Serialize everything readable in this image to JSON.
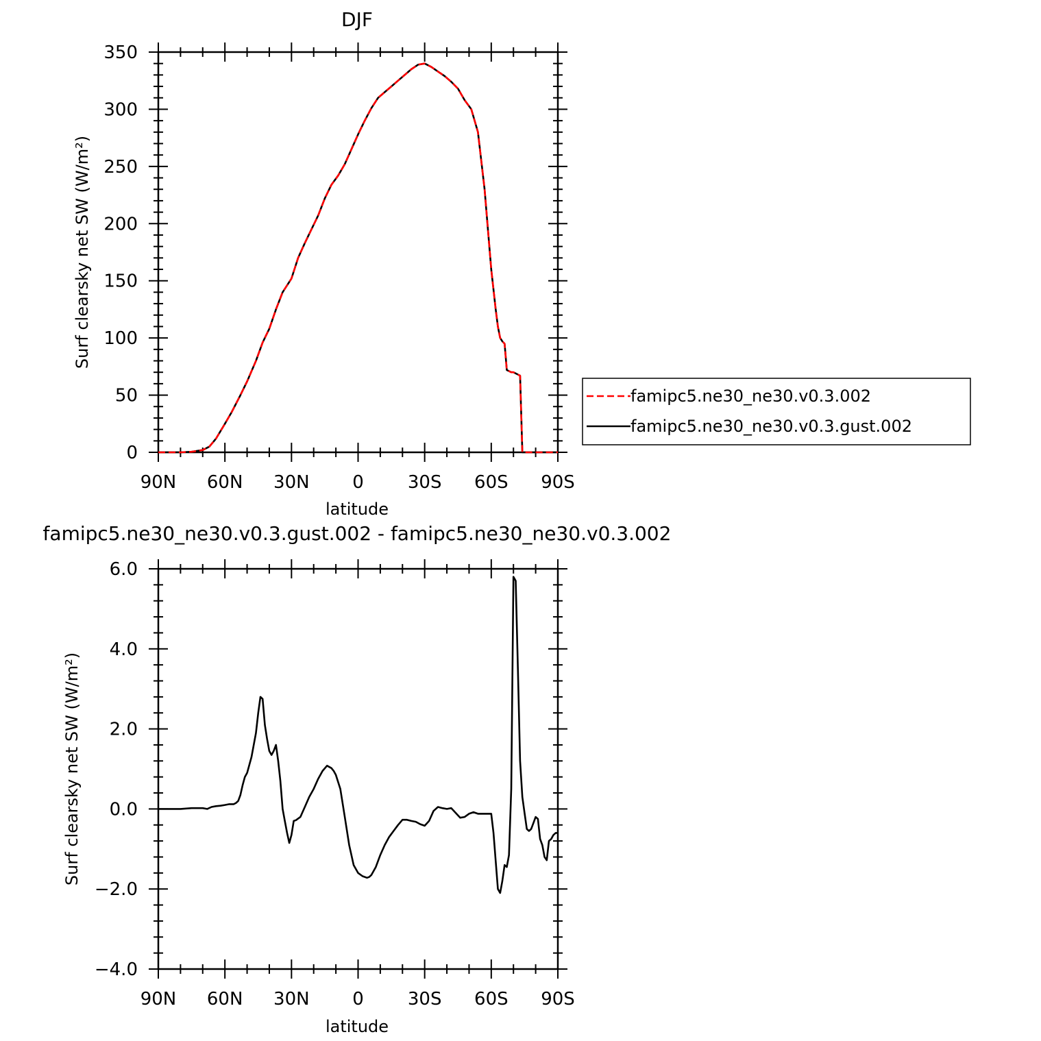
{
  "colors": {
    "control": "#ff0000",
    "test": "#000000",
    "axis": "#000000",
    "background": "#ffffff"
  },
  "chart_data": [
    {
      "type": "line",
      "title": "DJF",
      "xlabel": "latitude",
      "ylabel": "Surf clearsky net SW (W/m²)",
      "x_ticks": [
        {
          "value": -90,
          "label": "90N"
        },
        {
          "value": -60,
          "label": "60N"
        },
        {
          "value": -30,
          "label": "30N"
        },
        {
          "value": 0,
          "label": "0"
        },
        {
          "value": 30,
          "label": "30S"
        },
        {
          "value": 60,
          "label": "60S"
        },
        {
          "value": 90,
          "label": "90S"
        }
      ],
      "xlim": [
        -90,
        90
      ],
      "ylim": [
        0,
        350
      ],
      "y_ticks": [
        {
          "value": 0,
          "label": "0"
        },
        {
          "value": 50,
          "label": "50"
        },
        {
          "value": 100,
          "label": "100"
        },
        {
          "value": 150,
          "label": "150"
        },
        {
          "value": 200,
          "label": "200"
        },
        {
          "value": 250,
          "label": "250"
        },
        {
          "value": 300,
          "label": "300"
        },
        {
          "value": 350,
          "label": "350"
        }
      ],
      "legend": {
        "placement": "right"
      },
      "series": [
        {
          "name": "famipc5.ne30_ne30.v0.3.002",
          "style": "dashed",
          "x": [
            -90,
            -80,
            -75,
            -70,
            -67,
            -64,
            -60,
            -57,
            -53,
            -50,
            -46,
            -43,
            -40,
            -37,
            -34,
            -30,
            -27,
            -24,
            -21,
            -18,
            -15,
            -12,
            -9,
            -6,
            -3,
            0,
            3,
            6,
            9,
            12,
            15,
            18,
            21,
            24,
            27,
            30,
            33,
            36,
            39,
            42,
            45,
            48,
            51,
            54,
            57,
            60,
            62,
            63,
            64,
            65,
            66,
            67,
            68,
            69,
            70,
            71,
            72,
            73,
            74,
            76,
            78,
            80,
            82,
            85,
            88,
            90
          ],
          "values": [
            0,
            0,
            0.5,
            2,
            5,
            12,
            25,
            35,
            50,
            62,
            80,
            96,
            108,
            125,
            140,
            152,
            170,
            183,
            195,
            207,
            222,
            234,
            242,
            252,
            265,
            278,
            290,
            301,
            310,
            315,
            320,
            325,
            330,
            335,
            339,
            340,
            337,
            333,
            329,
            324,
            318,
            308,
            300,
            280,
            230,
            160,
            125,
            110,
            100,
            97,
            95,
            72,
            71,
            70,
            70,
            69,
            68,
            67,
            0,
            0,
            0,
            0,
            0,
            0,
            0,
            0
          ],
          "note": ""
        },
        {
          "name": "famipc5.ne30_ne30.v0.3.gust.002",
          "style": "solid",
          "x": [],
          "values": []
        }
      ]
    },
    {
      "type": "line",
      "title": "famipc5.ne30_ne30.v0.3.gust.002 - famipc5.ne30_ne30.v0.3.002",
      "xlabel": "latitude",
      "ylabel": "Surf clearsky net SW (W/m²)",
      "x_ticks": [
        {
          "value": -90,
          "label": "90N"
        },
        {
          "value": -60,
          "label": "60N"
        },
        {
          "value": -30,
          "label": "30N"
        },
        {
          "value": 0,
          "label": "0"
        },
        {
          "value": 30,
          "label": "30S"
        },
        {
          "value": 60,
          "label": "60S"
        },
        {
          "value": 90,
          "label": "90S"
        }
      ],
      "xlim": [
        -90,
        90
      ],
      "ylim": [
        -4,
        6
      ],
      "y_ticks": [
        {
          "value": -4,
          "label": "−4.0"
        },
        {
          "value": -2,
          "label": "−2.0"
        },
        {
          "value": 0,
          "label": "0.0"
        },
        {
          "value": 2,
          "label": "2.0"
        },
        {
          "value": 4,
          "label": "4.0"
        },
        {
          "value": 6,
          "label": "6.0"
        }
      ],
      "series": [
        {
          "x": [
            -90,
            -80,
            -75,
            -70,
            -68,
            -66,
            -64,
            -62,
            -60,
            -58,
            -56,
            -55,
            -54,
            -53,
            -52,
            -51,
            -50,
            -48,
            -46,
            -45,
            -44,
            -43,
            -42,
            -41,
            -40,
            -39,
            -38,
            -37,
            -36,
            -35,
            -34,
            -33,
            -32,
            -31,
            -30,
            -29,
            -28,
            -26,
            -24,
            -22,
            -20,
            -18,
            -16,
            -14,
            -12,
            -11,
            -10,
            -8,
            -6,
            -4,
            -2,
            0,
            2,
            4,
            5,
            6,
            8,
            10,
            12,
            14,
            16,
            18,
            20,
            22,
            24,
            26,
            28,
            30,
            32,
            34,
            36,
            38,
            40,
            42,
            44,
            46,
            48,
            50,
            52,
            54,
            56,
            58,
            60,
            61,
            62,
            63,
            64,
            65,
            66,
            67,
            68,
            69,
            70,
            71,
            72,
            73,
            74,
            75,
            76,
            77,
            78,
            79,
            80,
            81,
            82,
            83,
            84,
            85,
            86,
            87,
            88,
            89,
            90
          ],
          "values": [
            0,
            0,
            0.02,
            0.02,
            0,
            0.05,
            0.07,
            0.08,
            0.1,
            0.12,
            0.12,
            0.15,
            0.2,
            0.35,
            0.6,
            0.8,
            0.9,
            1.3,
            1.9,
            2.4,
            2.8,
            2.75,
            2.1,
            1.75,
            1.45,
            1.35,
            1.45,
            1.6,
            1.2,
            0.7,
            0,
            -0.3,
            -0.6,
            -0.85,
            -0.65,
            -0.3,
            -0.28,
            -0.2,
            0.05,
            0.3,
            0.5,
            0.75,
            0.95,
            1.08,
            1.02,
            0.95,
            0.85,
            0.5,
            -0.2,
            -0.9,
            -1.4,
            -1.6,
            -1.68,
            -1.72,
            -1.7,
            -1.65,
            -1.45,
            -1.15,
            -0.9,
            -0.7,
            -0.55,
            -0.4,
            -0.27,
            -0.27,
            -0.3,
            -0.32,
            -0.38,
            -0.42,
            -0.3,
            -0.05,
            0.05,
            0.02,
            0,
            0.02,
            -0.1,
            -0.22,
            -0.2,
            -0.12,
            -0.08,
            -0.12,
            -0.12,
            -0.12,
            -0.12,
            -0.6,
            -1.3,
            -2,
            -2.1,
            -1.8,
            -1.4,
            -1.45,
            -1.15,
            0.5,
            5.8,
            5.7,
            3.5,
            1.2,
            0.3,
            -0.1,
            -0.5,
            -0.55,
            -0.5,
            -0.35,
            -0.2,
            -0.25,
            -0.75,
            -0.9,
            -1.2,
            -1.28,
            -0.8,
            -0.75,
            -0.65,
            -0.6,
            -0.6
          ]
        }
      ]
    }
  ]
}
